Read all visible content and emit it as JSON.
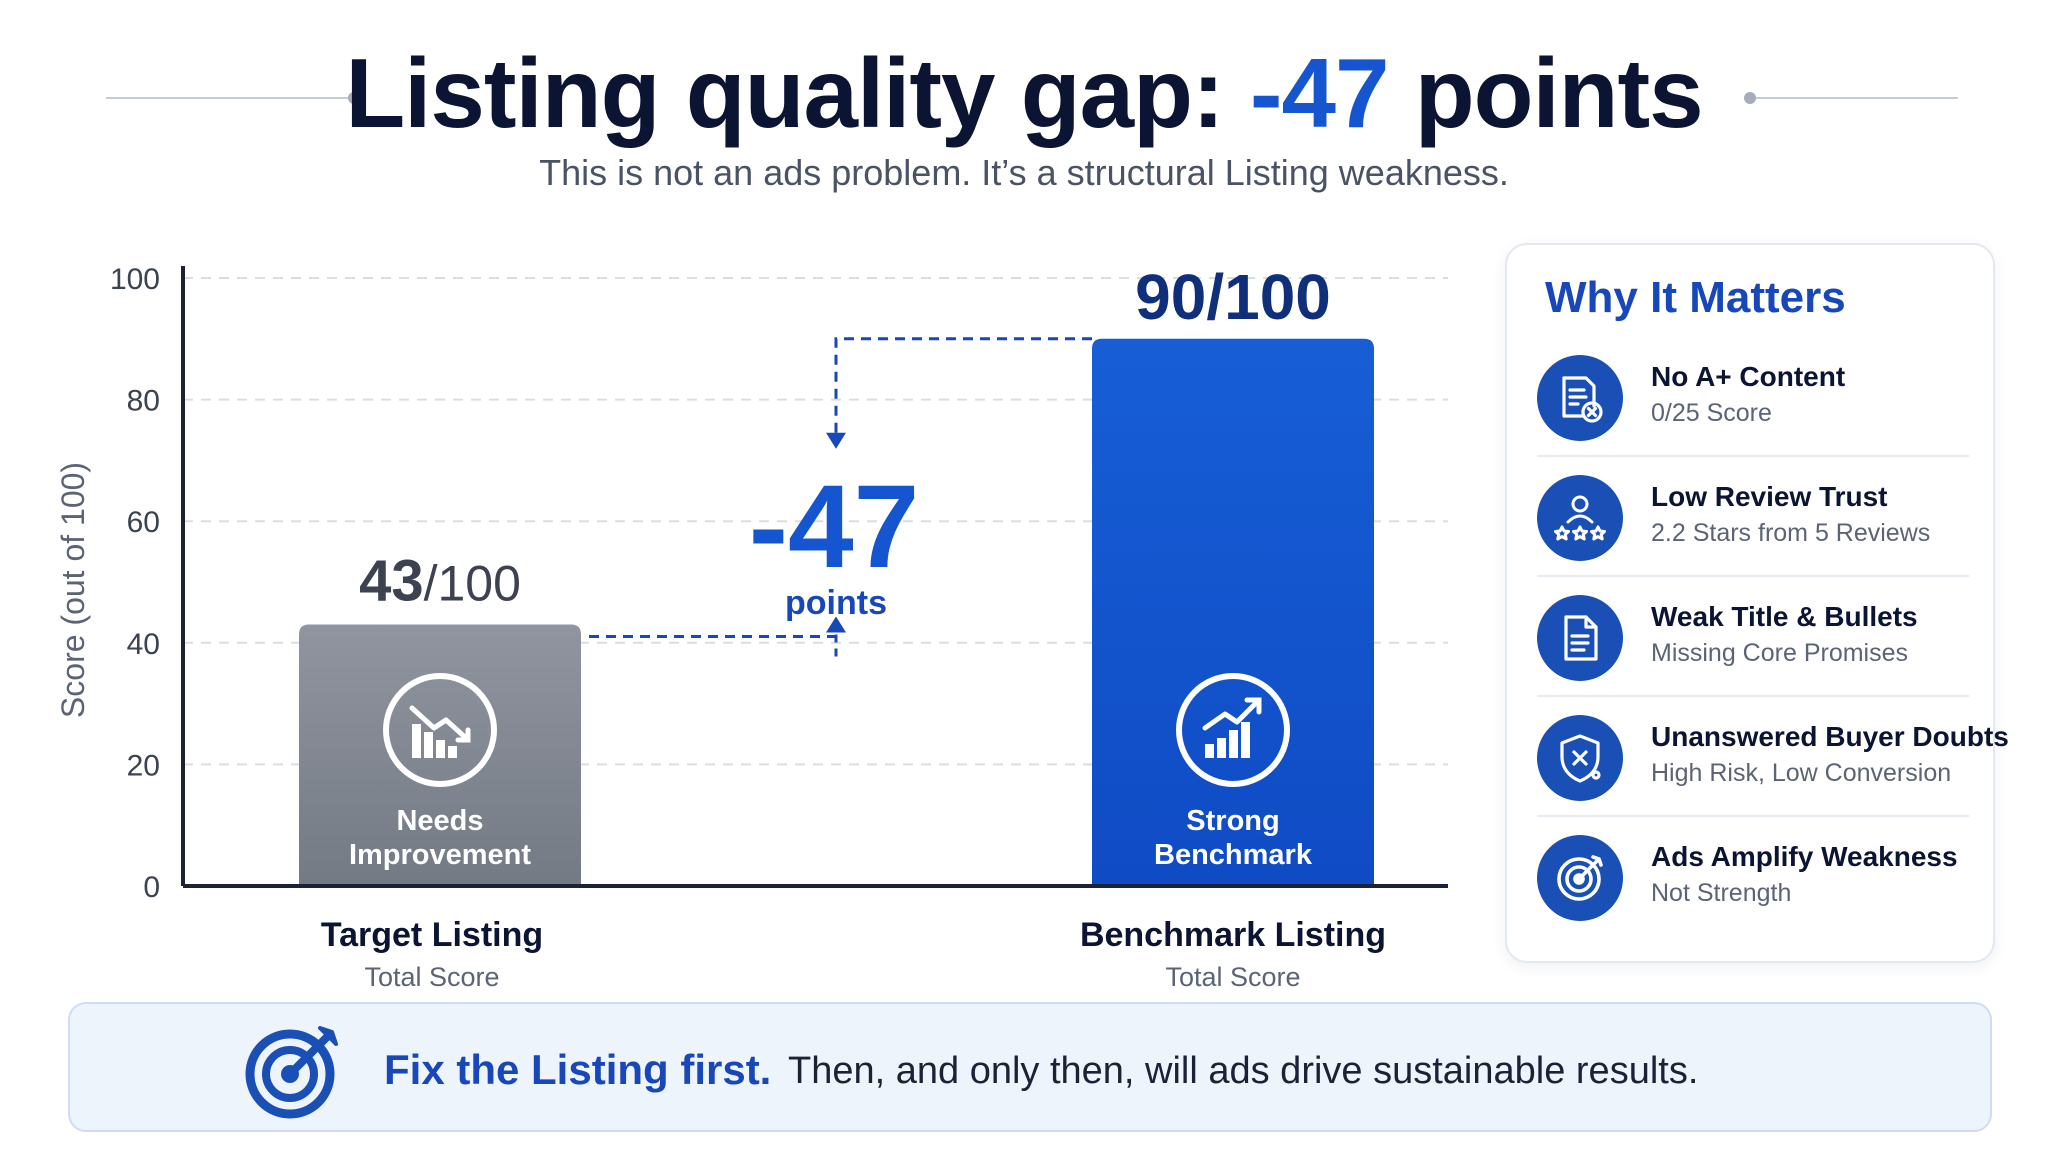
{
  "header": {
    "title_prefix": "Listing quality gap: ",
    "title_accent": "-47",
    "title_suffix": " points",
    "subtitle": "This is not an ads problem. It’s a structural Listing weakness."
  },
  "chart_data": {
    "type": "bar",
    "categories": [
      "Target Listing",
      "Benchmark Listing"
    ],
    "category_sublabels": [
      "Total Score",
      "Total Score"
    ],
    "values": [
      43,
      90
    ],
    "value_labels": [
      {
        "main": "43",
        "suffix": "/100"
      },
      {
        "main": "90/100",
        "suffix": ""
      }
    ],
    "bar_captions": [
      [
        "Needs",
        "Improvement"
      ],
      [
        "Strong",
        "Benchmark"
      ]
    ],
    "bar_icons": [
      "chart-down-icon",
      "chart-up-icon"
    ],
    "bar_colors": [
      "#858b93",
      "#1556d0"
    ],
    "ylabel": "Score (out of 100)",
    "ylim": [
      0,
      100
    ],
    "yticks": [
      0,
      20,
      40,
      60,
      80,
      100
    ],
    "grid": true,
    "gap": {
      "value": "-47",
      "unit": "points"
    }
  },
  "panel": {
    "title": "Why It Matters",
    "items": [
      {
        "icon": "document-x-icon",
        "title": "No A+ Content",
        "subtitle": "0/25 Score"
      },
      {
        "icon": "review-stars-icon",
        "title": "Low Review Trust",
        "subtitle": "2.2 Stars from 5 Reviews"
      },
      {
        "icon": "document-lines-icon",
        "title": "Weak Title & Bullets",
        "subtitle": "Missing Core Promises"
      },
      {
        "icon": "shield-x-icon",
        "title": "Unanswered Buyer Doubts",
        "subtitle": "High Risk, Low Conversion"
      },
      {
        "icon": "target-icon",
        "title": "Ads Amplify Weakness",
        "subtitle": "Not Strength"
      }
    ]
  },
  "banner": {
    "icon": "target-arrow-icon",
    "bold": "Fix the Listing first.",
    "rest": "Then, and only then, will ads drive sustainable results."
  }
}
